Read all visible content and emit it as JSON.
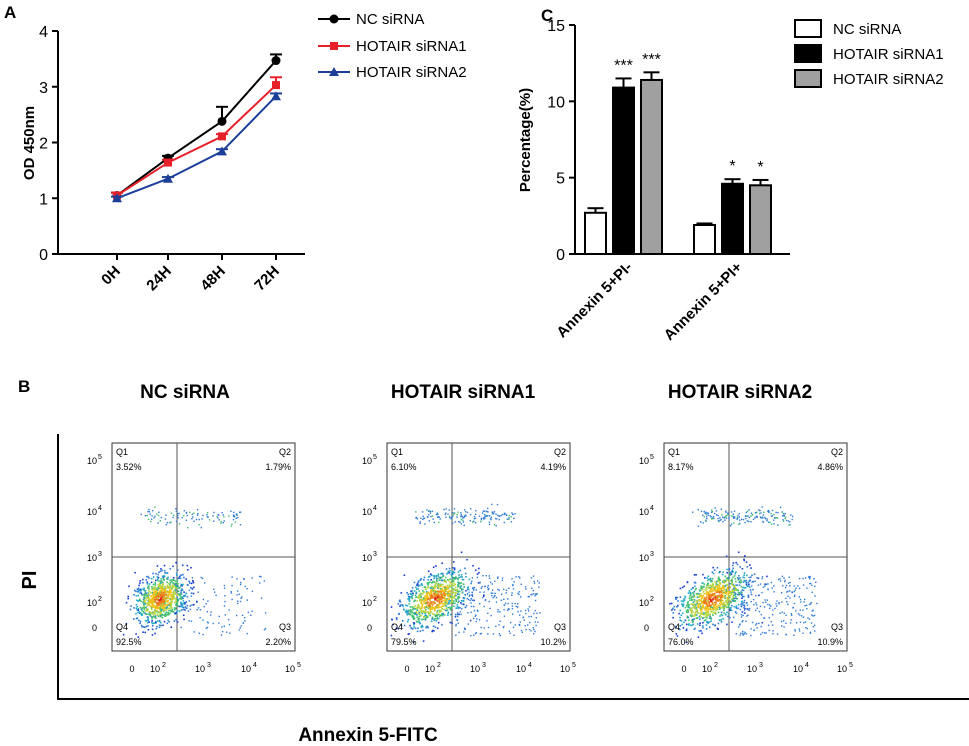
{
  "panels": {
    "a_letter": "A",
    "b_letter": "B",
    "c_letter": "C"
  },
  "colors": {
    "nc": "#000000",
    "sirna1": "#e8202a",
    "sirna2": "#1d3f99",
    "bar_gray": "#a0a0a0",
    "quadline": "#555555"
  },
  "chart_data": [
    {
      "id": "panel-a",
      "type": "line",
      "xlabel": "",
      "ylabel": "OD 450nm",
      "ylim": [
        0,
        4
      ],
      "yticks": [
        "0",
        "1",
        "2",
        "3",
        "4"
      ],
      "categories": [
        "0H",
        "24H",
        "48H",
        "72H"
      ],
      "series": [
        {
          "name": "NC siRNA",
          "marker": "circle",
          "values": [
            1.05,
            1.72,
            2.38,
            3.47
          ],
          "errors": [
            0.05,
            0.04,
            0.26,
            0.11
          ]
        },
        {
          "name": "HOTAIR siRNA1",
          "marker": "square",
          "values": [
            1.05,
            1.64,
            2.11,
            3.03
          ],
          "errors": [
            0.05,
            0.05,
            0.04,
            0.14
          ]
        },
        {
          "name": "HOTAIR siRNA2",
          "marker": "triangle",
          "values": [
            1.0,
            1.35,
            1.84,
            2.83
          ],
          "errors": [
            0.03,
            0.03,
            0.04,
            0.05
          ]
        }
      ],
      "legend": "top-right"
    },
    {
      "id": "panel-c",
      "type": "bar",
      "xlabel": "",
      "ylabel": "Percentage(%)",
      "ylim": [
        0,
        15
      ],
      "yticks": [
        "0",
        "5",
        "10",
        "15"
      ],
      "categories": [
        "Annexin 5+PI-",
        "Annexin 5+PI+"
      ],
      "series": [
        {
          "name": "NC siRNA",
          "values": [
            2.7,
            1.9
          ],
          "errors": [
            0.3,
            0.1
          ],
          "sig": [
            "",
            ""
          ]
        },
        {
          "name": "HOTAIR siRNA1",
          "values": [
            10.9,
            4.6
          ],
          "errors": [
            0.6,
            0.3
          ],
          "sig": [
            "***",
            "*"
          ]
        },
        {
          "name": "HOTAIR siRNA2",
          "values": [
            11.4,
            4.5
          ],
          "errors": [
            0.5,
            0.35
          ],
          "sig": [
            "***",
            "*"
          ]
        }
      ],
      "legend": "top-right"
    },
    {
      "id": "panel-b",
      "type": "scatter",
      "xlabel": "Annexin 5-FITC",
      "ylabel": "PI",
      "axis_tick_labels": [
        "0",
        "10",
        "10",
        "10",
        "10"
      ],
      "axis_tick_exponents": [
        "",
        "2",
        "3",
        "4",
        "5"
      ],
      "plots": [
        {
          "title": "NC siRNA",
          "quadrants": [
            {
              "name": "Q1",
              "value": "3.52%"
            },
            {
              "name": "Q2",
              "value": "1.79%"
            },
            {
              "name": "Q3",
              "value": "2.20%"
            },
            {
              "name": "Q4",
              "value": "92.5%"
            }
          ]
        },
        {
          "title": "HOTAIR siRNA1",
          "quadrants": [
            {
              "name": "Q1",
              "value": "6.10%"
            },
            {
              "name": "Q2",
              "value": "4.19%"
            },
            {
              "name": "Q3",
              "value": "10.2%"
            },
            {
              "name": "Q4",
              "value": "79.5%"
            }
          ]
        },
        {
          "title": "HOTAIR siRNA2",
          "quadrants": [
            {
              "name": "Q1",
              "value": "8.17%"
            },
            {
              "name": "Q2",
              "value": "4.86%"
            },
            {
              "name": "Q3",
              "value": "10.9%"
            },
            {
              "name": "Q4",
              "value": "76.0%"
            }
          ]
        }
      ]
    }
  ]
}
